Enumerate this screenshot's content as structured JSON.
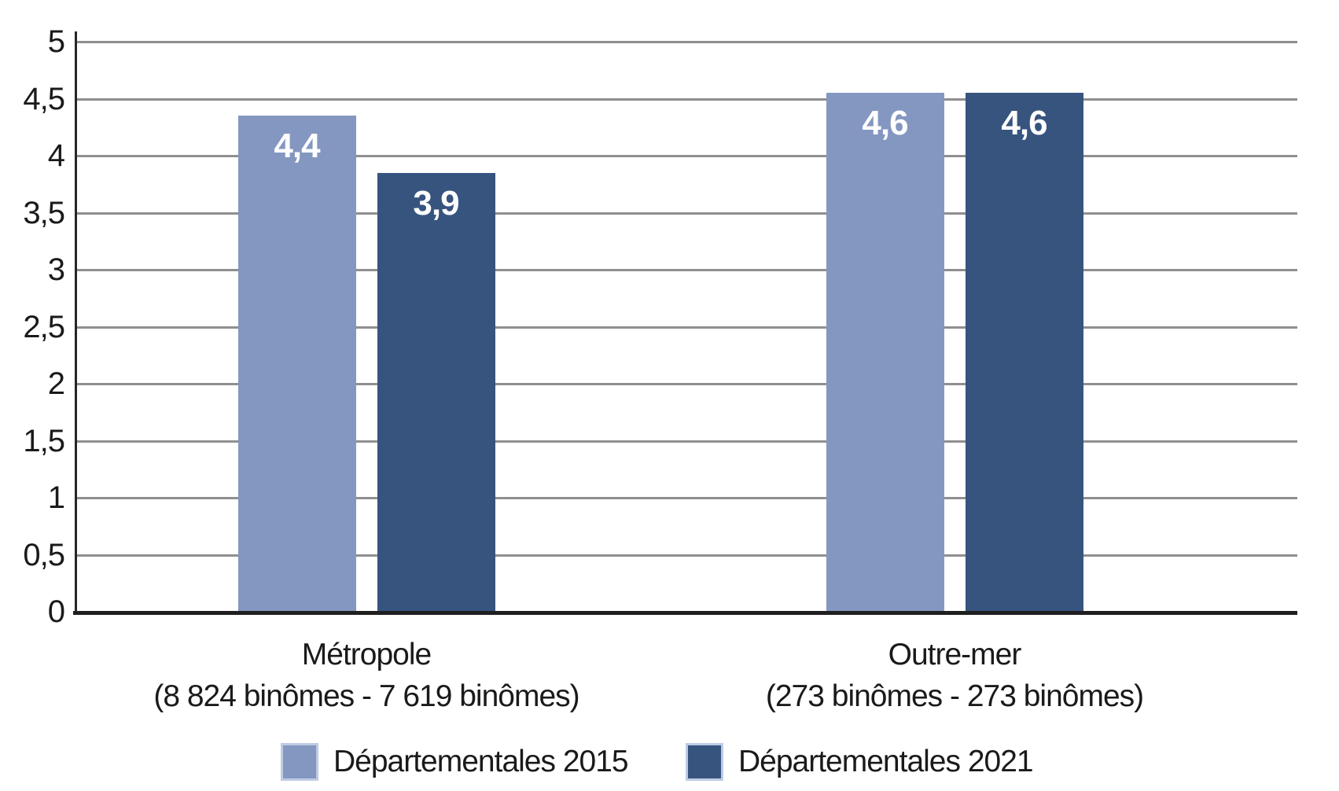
{
  "chart_data": {
    "type": "bar",
    "title": "",
    "categories": [
      {
        "name": "Métropole",
        "sub": "(8 824 binômes - 7 619 binômes)"
      },
      {
        "name": "Outre-mer",
        "sub": "(273 binômes - 273 binômes)"
      }
    ],
    "series": [
      {
        "name": "Départementales 2015",
        "color": "#8497C1",
        "values": [
          4.4,
          4.6
        ],
        "value_labels": [
          "4,4",
          "4,6"
        ],
        "plotted_values": [
          4.35,
          4.55
        ]
      },
      {
        "name": "Départementales 2021",
        "color": "#36547E",
        "values": [
          3.9,
          4.6
        ],
        "value_labels": [
          "3,9",
          "4,6"
        ],
        "plotted_values": [
          3.85,
          4.55
        ]
      }
    ],
    "ylim": [
      0,
      5
    ],
    "ytick_step": 0.5,
    "ytick_labels": [
      "0",
      "0,5",
      "1",
      "1,5",
      "2",
      "2,5",
      "3",
      "3,5",
      "4",
      "4,5",
      "5"
    ],
    "grid": true,
    "legend_position": "bottom"
  },
  "colors": {
    "series_2015": "#8497C1",
    "series_2021": "#36547E",
    "gridline": "#8f8f8f",
    "axis": "#262626",
    "text": "#1a1a1a",
    "bar_label": "#ffffff",
    "legend_swatch_border": "#bdcbe4",
    "background": "#ffffff"
  }
}
